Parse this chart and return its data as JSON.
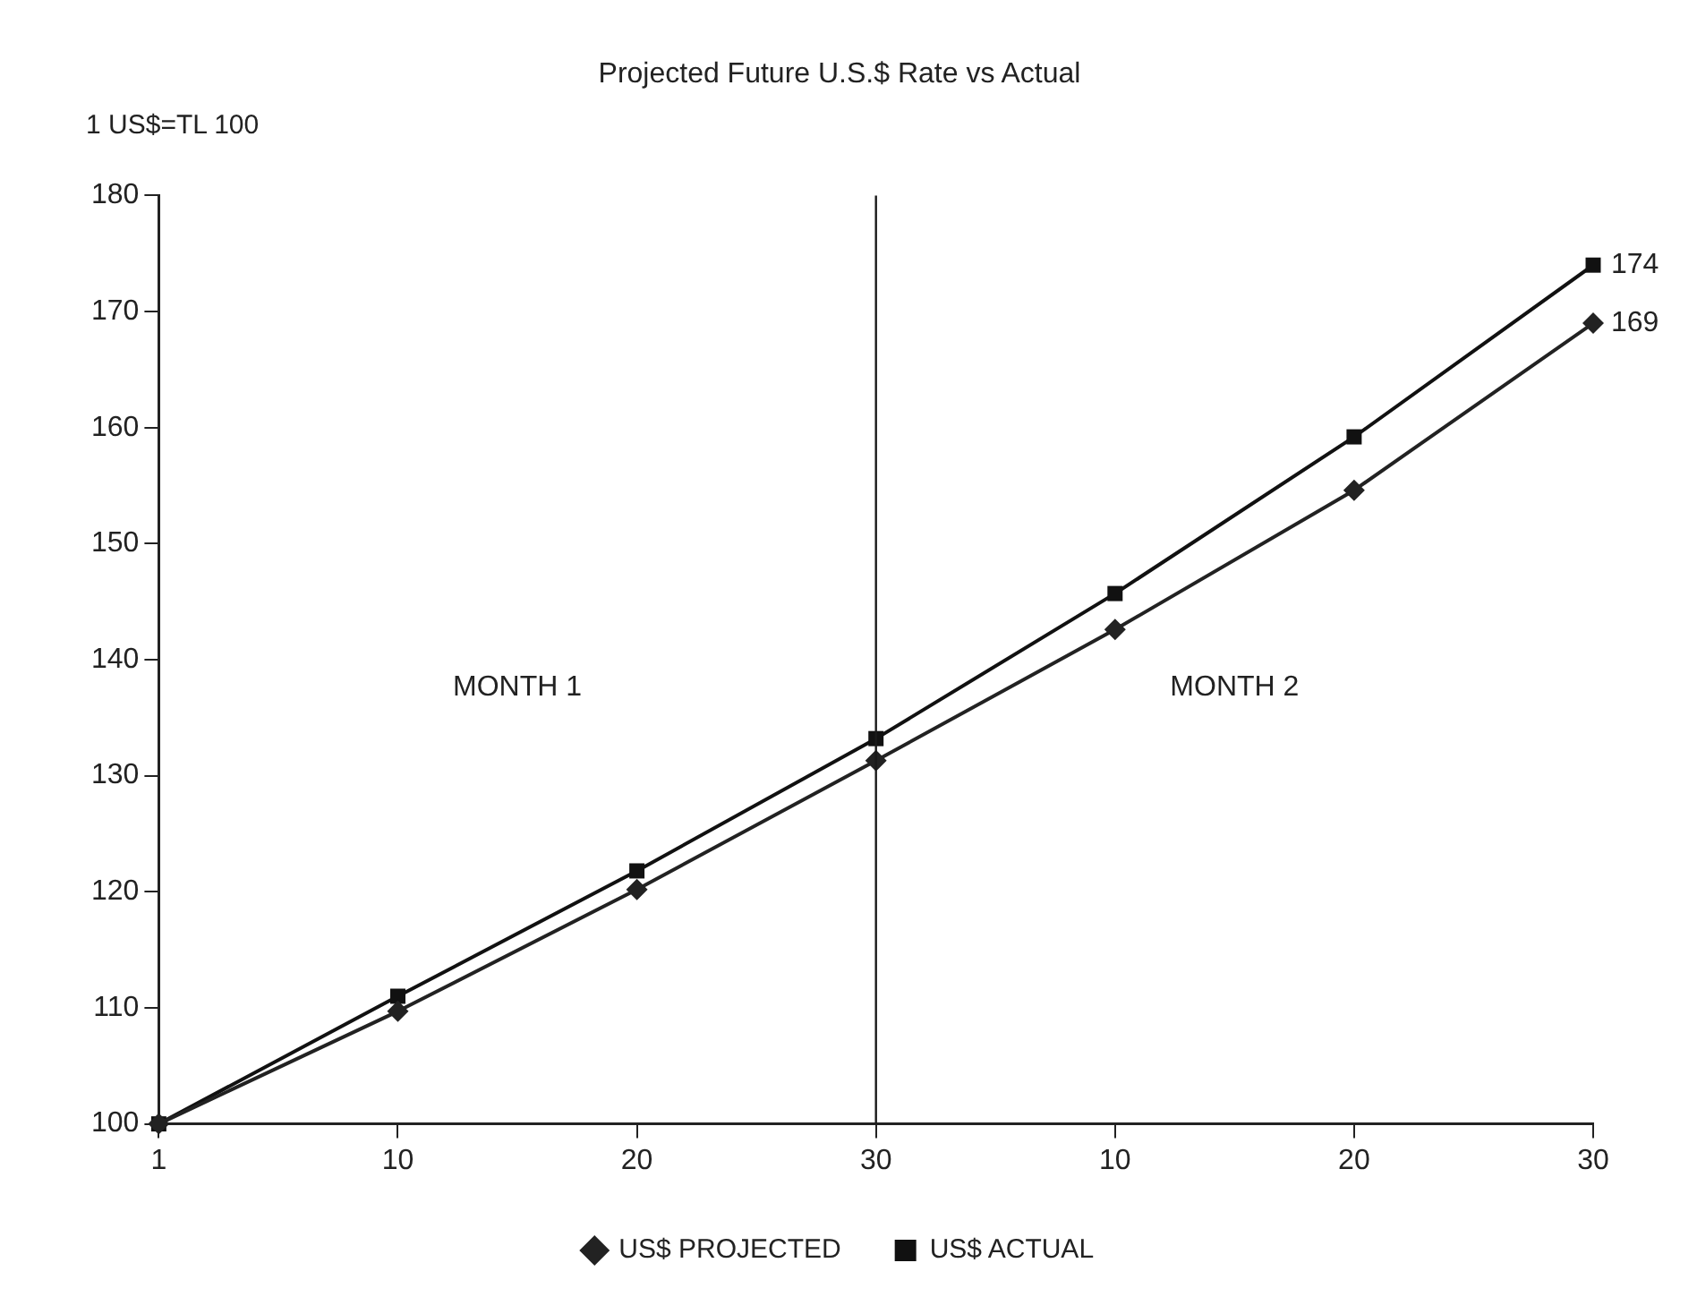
{
  "chart_data": {
    "type": "line",
    "title": "Projected Future U.S.$ Rate vs Actual",
    "ylabel": "1 US$=TL 100",
    "categories": [
      "1",
      "10",
      "20",
      "30",
      "10",
      "20",
      "30"
    ],
    "series": [
      {
        "name": "US$ PROJECTED",
        "color": "#222222",
        "marker": "diamond",
        "values": [
          100,
          109.7,
          120.2,
          131.3,
          142.6,
          154.6,
          169
        ],
        "value_labels": [
          null,
          null,
          null,
          null,
          null,
          null,
          "169"
        ]
      },
      {
        "name": "US$ ACTUAL",
        "color": "#111111",
        "marker": "square",
        "values": [
          100,
          111.0,
          121.8,
          133.2,
          145.7,
          159.2,
          174
        ],
        "value_labels": [
          null,
          null,
          null,
          null,
          null,
          null,
          "174"
        ]
      }
    ],
    "ylim": [
      100,
      180
    ],
    "yticks": [
      100,
      110,
      120,
      130,
      140,
      150,
      160,
      170,
      180
    ],
    "ref_lines": [
      {
        "axis": "x",
        "value": "30",
        "color": "#1a1a1a"
      }
    ],
    "annotations": [
      "MONTH 1",
      "MONTH 2"
    ],
    "grid": false,
    "legend": "bottom",
    "line_style": "solid"
  }
}
